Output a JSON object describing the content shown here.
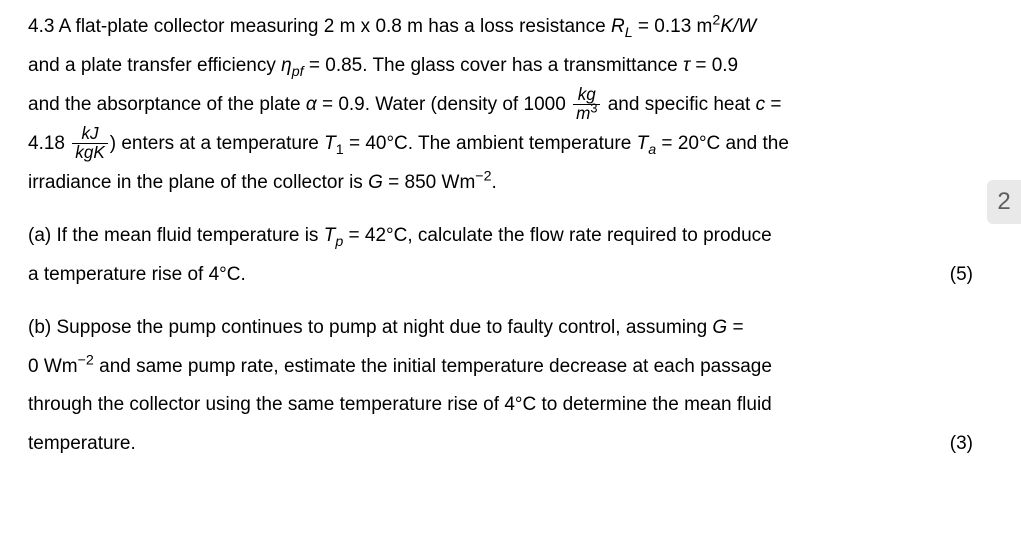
{
  "doc": {
    "background_color": "#ffffff",
    "text_color": "#000000",
    "font_family": "Arial",
    "font_size_pt": 14,
    "line_height": 2.05,
    "alignment": "justify"
  },
  "problem": {
    "number": "4.3",
    "dims": "2 m x 0.8 m",
    "RL_label": "R",
    "RL_sub": "L",
    "RL_value": "0.13 m",
    "RL_unit_sup": "2",
    "RL_unit_tail": "K/W",
    "eta_symbol": "η",
    "eta_sub": "pf",
    "eta_value": "0.85",
    "tau_symbol": "τ",
    "tau_value": "0.9",
    "alpha_symbol": "α",
    "alpha_value": "0.9",
    "rho_value": "1000",
    "rho_unit_num": "kg",
    "rho_unit_den": "m",
    "rho_unit_den_sup": "3",
    "c_symbol": "c",
    "c_value": "4.18",
    "c_unit_num": "kJ",
    "c_unit_den": "kgK",
    "T1_value": "40°C",
    "Ta_value": "20°C",
    "G_value": "850 Wm",
    "G_sup": "−2"
  },
  "partA": {
    "label": "(a)",
    "Tp_value": "42°C",
    "dT_value": "4°C",
    "marks": "(5)"
  },
  "partB": {
    "label": "(b)",
    "G_value": "0 Wm",
    "G_sup": "−2",
    "dT_value": "4°C",
    "marks": "(3)"
  },
  "sidebar": {
    "count": "2",
    "bg_color": "#e9e9e9",
    "fg_color": "#5f5f5f"
  },
  "strings": {
    "s1a": " A flat-plate collector measuring ",
    "s1b": " has a loss resistance ",
    "eq": " = ",
    "s2a": "and a plate transfer efficiency ",
    "s2b": ". The glass cover has a transmittance ",
    "s3a": "and the absorptance of the plate ",
    "s3b": ". Water (density of ",
    "s3c": " and specific heat ",
    "s4a": ") enters at a temperature ",
    "s4b": ". The ambient temperature ",
    "s4c": " and the",
    "s5a": "irradiance in the plane of the collector is ",
    "s5b": ".",
    "A1": " If the mean fluid temperature is ",
    "A2": ", calculate the flow rate required to produce",
    "A3": "a temperature rise of ",
    "A4": ".",
    "B1": " Suppose the pump continues to pump at night due to faulty control, assuming ",
    "B2": " and same pump rate, estimate the initial temperature decrease at each passage",
    "B3": "through the collector using the same temperature rise of ",
    "B4": " to determine the mean fluid",
    "B5": "temperature."
  }
}
